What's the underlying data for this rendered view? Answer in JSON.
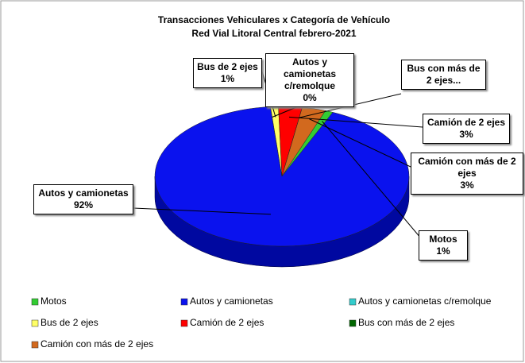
{
  "chart_data": {
    "type": "pie",
    "title": "Transacciones Vehiculares x Categoría de Vehículo",
    "subtitle": "Red Vial Litoral Central febrero-2021",
    "categories": [
      "Motos",
      "Autos y camionetas",
      "Autos y camionetas c/remolque",
      "Bus de 2 ejes",
      "Camión de 2 ejes",
      "Bus con más de 2 ejes",
      "Camión con más de 2 ejes"
    ],
    "values": [
      1,
      92,
      0,
      1,
      3,
      0,
      3
    ],
    "value_labels": [
      "1%",
      "92%",
      "0%",
      "1%",
      "3%",
      null,
      "3%"
    ],
    "callout_labels": [
      "Motos",
      "Autos y camionetas",
      "Autos y camionetas c/remolque",
      "Bus de 2 ejes",
      "Camión de 2 ejes",
      "Bus con más de 2 ejes...",
      "Camión con más de 2 ejes"
    ],
    "colors": [
      "#33cc33",
      "#0a12ee",
      "#33cccc",
      "#ffff66",
      "#ff0000",
      "#006600",
      "#d2691e"
    ],
    "legend": "bottom"
  }
}
